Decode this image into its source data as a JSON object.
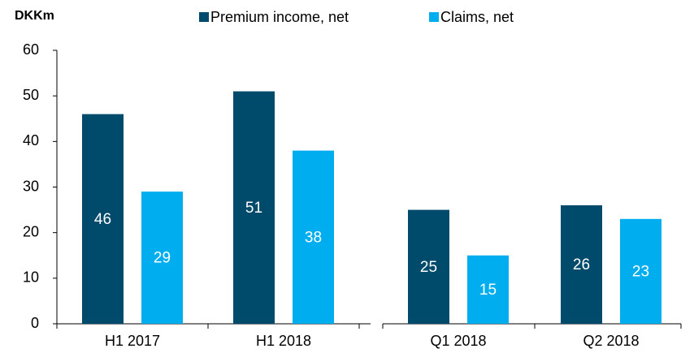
{
  "chart_data": {
    "type": "bar",
    "y_label": "DKKm",
    "categories": [
      "H1 2017",
      "H1 2018",
      "Q1 2018",
      "Q2 2018"
    ],
    "series": [
      {
        "name": "Premium income, net",
        "color": "#004b6b",
        "values": [
          46,
          51,
          25,
          26
        ]
      },
      {
        "name": "Claims, net",
        "color": "#00aeef",
        "values": [
          29,
          38,
          15,
          23
        ]
      }
    ],
    "ylim": [
      0,
      60
    ],
    "yticks": [
      0,
      10,
      20,
      30,
      40,
      50,
      60
    ],
    "grid": false,
    "legend": "top"
  }
}
